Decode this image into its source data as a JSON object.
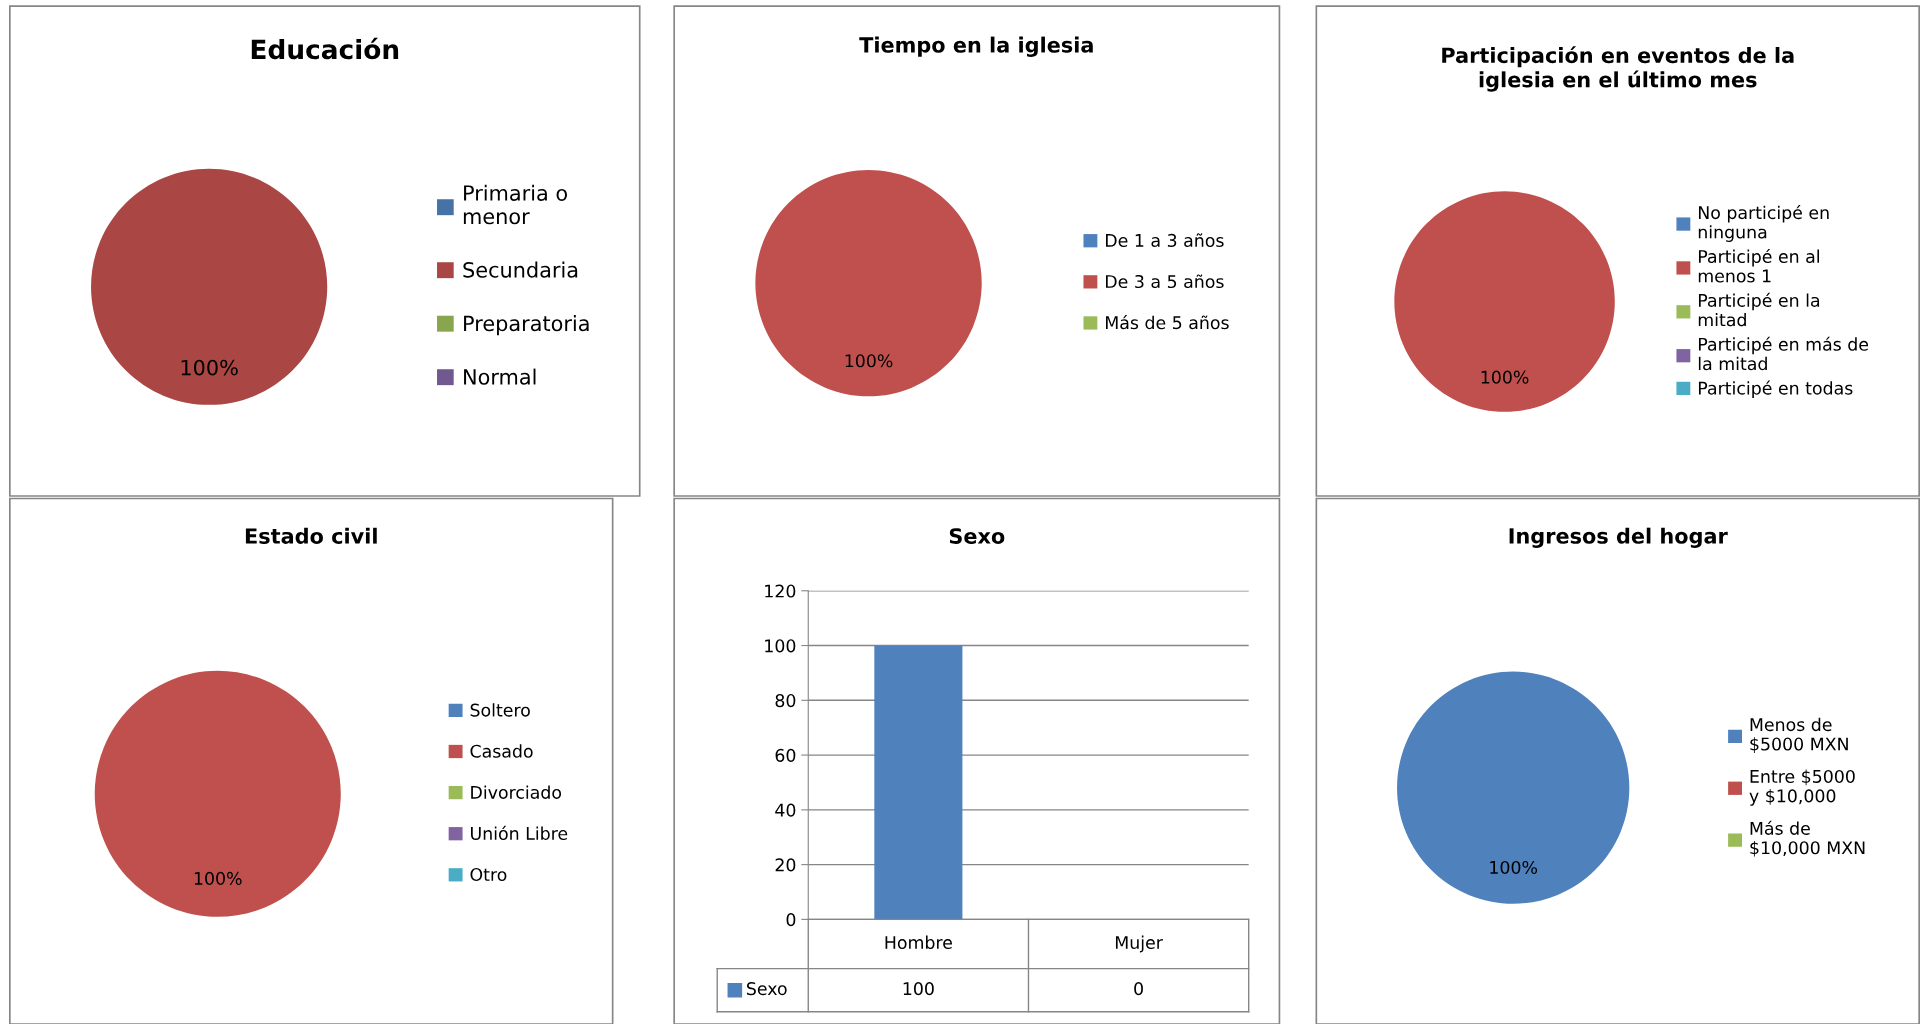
{
  "chart_data": [
    {
      "type": "pie",
      "title": "Educación",
      "categories": [
        "Primaria o menor",
        "Secundaria",
        "Preparatoria",
        "Normal"
      ],
      "values": [
        0,
        100,
        0,
        0
      ],
      "colors": [
        "#4572a7",
        "#aa4643",
        "#89a54e",
        "#71588f"
      ],
      "value_labels": [
        null,
        "100%",
        null,
        null
      ],
      "legend": "right"
    },
    {
      "type": "pie",
      "title": "Tiempo en la iglesia",
      "categories": [
        "De 1 a 3 años",
        "De 3 a 5 años",
        "Más de 5 años"
      ],
      "values": [
        0,
        100,
        0
      ],
      "colors": [
        "#4f81bd",
        "#c0504d",
        "#9bbb59"
      ],
      "value_labels": [
        null,
        "100%",
        null
      ],
      "legend": "right"
    },
    {
      "type": "pie",
      "title": "Participación en eventos de la iglesia en el último mes",
      "categories": [
        "No participé en ninguna",
        "Participé en al menos 1",
        "Participé en la mitad",
        "Participé en más de la mitad",
        "Participé en todas"
      ],
      "values": [
        0,
        100,
        0,
        0,
        0
      ],
      "colors": [
        "#4f81bd",
        "#c0504d",
        "#9bbb59",
        "#8064a2",
        "#4bacc6"
      ],
      "value_labels": [
        null,
        "100%",
        null,
        null,
        null
      ],
      "legend": "right"
    },
    {
      "type": "pie",
      "title": "Estado civil",
      "categories": [
        "Soltero",
        "Casado",
        "Divorciado",
        "Unión Libre",
        "Otro"
      ],
      "values": [
        0,
        100,
        0,
        0,
        0
      ],
      "colors": [
        "#4f81bd",
        "#c0504d",
        "#9bbb59",
        "#8064a2",
        "#4bacc6"
      ],
      "value_labels": [
        null,
        "100%",
        null,
        null,
        null
      ],
      "legend": "right"
    },
    {
      "type": "bar",
      "title": "Sexo",
      "categories": [
        "Hombre",
        "Mujer"
      ],
      "series": [
        {
          "name": "Sexo",
          "color": "#4f81bd",
          "values": [
            100,
            0
          ]
        }
      ],
      "ylim": [
        0,
        120
      ],
      "yticks": [
        0,
        20,
        40,
        60,
        80,
        100,
        120
      ],
      "grid": "y",
      "data_labels": true
    },
    {
      "type": "pie",
      "title": "Ingresos del hogar",
      "categories": [
        "Menos de $5000 MXN",
        "Entre $5000 y $10,000",
        "Más de $10,000 MXN"
      ],
      "values": [
        100,
        0,
        0
      ],
      "colors": [
        "#4f81bd",
        "#c0504d",
        "#9bbb59"
      ],
      "value_labels": [
        "100%",
        null,
        null
      ],
      "legend": "right"
    }
  ]
}
